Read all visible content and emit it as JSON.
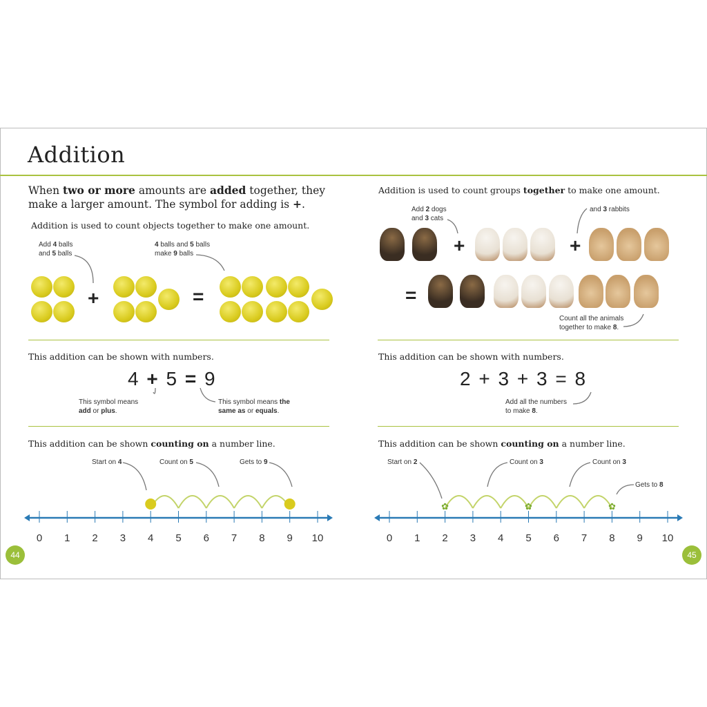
{
  "title": "Addition",
  "left": {
    "intro": [
      {
        "t": "When "
      },
      {
        "t": "two or more",
        "b": true
      },
      {
        "t": " amounts are "
      },
      {
        "t": "added",
        "b": true
      },
      {
        "t": " together, they make a larger amount. The symbol for adding is "
      },
      {
        "t": "+",
        "b": true
      },
      {
        "t": "."
      }
    ],
    "objects_text": "Addition is used to count objects together to make one amount.",
    "note1": [
      {
        "t": "Add "
      },
      {
        "t": "4",
        "b": true
      },
      {
        "t": " balls and "
      },
      {
        "t": "5",
        "b": true
      },
      {
        "t": " balls"
      }
    ],
    "note2": [
      {
        "t": "4",
        "b": true
      },
      {
        "t": " balls and "
      },
      {
        "t": "5",
        "b": true
      },
      {
        "t": " balls make "
      },
      {
        "t": "9",
        "b": true
      },
      {
        "t": " balls"
      }
    ],
    "plus": "+",
    "equals": "=",
    "numbers_text": "This addition can be shown with numbers.",
    "equation": [
      "4",
      "+",
      "5",
      "=",
      "9"
    ],
    "note_plus": [
      {
        "t": "This symbol means "
      },
      {
        "t": "add",
        "b": true
      },
      {
        "t": " or "
      },
      {
        "t": "plus",
        "b": true
      },
      {
        "t": "."
      }
    ],
    "note_equals": [
      {
        "t": "This symbol means "
      },
      {
        "t": "the same as",
        "b": true
      },
      {
        "t": " or "
      },
      {
        "t": "equals",
        "b": true
      },
      {
        "t": "."
      }
    ],
    "numberline_text": [
      {
        "t": "This addition can be shown "
      },
      {
        "t": "counting on",
        "b": true
      },
      {
        "t": " a number line."
      }
    ],
    "nl_notes": [
      [
        {
          "t": "Start on "
        },
        {
          "t": "4",
          "b": true
        }
      ],
      [
        {
          "t": "Count on "
        },
        {
          "t": "5",
          "b": true
        }
      ],
      [
        {
          "t": "Gets to "
        },
        {
          "t": "9",
          "b": true
        }
      ]
    ],
    "page_number": "44"
  },
  "right": {
    "groups_text": [
      {
        "t": "Addition is used to count groups "
      },
      {
        "t": "together",
        "b": true
      },
      {
        "t": " to make one amount."
      }
    ],
    "note1": [
      {
        "t": "Add "
      },
      {
        "t": "2",
        "b": true
      },
      {
        "t": " dogs and "
      },
      {
        "t": "3",
        "b": true
      },
      {
        "t": " cats"
      }
    ],
    "note2": [
      {
        "t": "and "
      },
      {
        "t": "3",
        "b": true
      },
      {
        "t": " rabbits"
      }
    ],
    "note3": [
      {
        "t": "Count all the animals together to make "
      },
      {
        "t": "8",
        "b": true
      },
      {
        "t": "."
      }
    ],
    "plus": "+",
    "equals": "=",
    "numbers_text": "This addition can be shown with numbers.",
    "equation": [
      "2",
      "+",
      "3",
      "+",
      "3",
      "=",
      "8"
    ],
    "note_sum": [
      {
        "t": "Add all the numbers to make "
      },
      {
        "t": "8",
        "b": true
      },
      {
        "t": "."
      }
    ],
    "numberline_text": [
      {
        "t": "This addition can be shown "
      },
      {
        "t": "counting on",
        "b": true
      },
      {
        "t": " a number line."
      }
    ],
    "nl_notes": [
      [
        {
          "t": "Start on "
        },
        {
          "t": "2",
          "b": true
        }
      ],
      [
        {
          "t": "Count on "
        },
        {
          "t": "3",
          "b": true
        }
      ],
      [
        {
          "t": "Count on "
        },
        {
          "t": "3",
          "b": true
        }
      ],
      [
        {
          "t": "Gets to "
        },
        {
          "t": "8",
          "b": true
        }
      ]
    ],
    "page_number": "45"
  },
  "number_line_labels": [
    "0",
    "1",
    "2",
    "3",
    "4",
    "5",
    "6",
    "7",
    "8",
    "9",
    "10"
  ],
  "colors": {
    "accent": "#a9c23f",
    "number_line": "#2a7ab5",
    "ball": "#d9cb1e"
  }
}
